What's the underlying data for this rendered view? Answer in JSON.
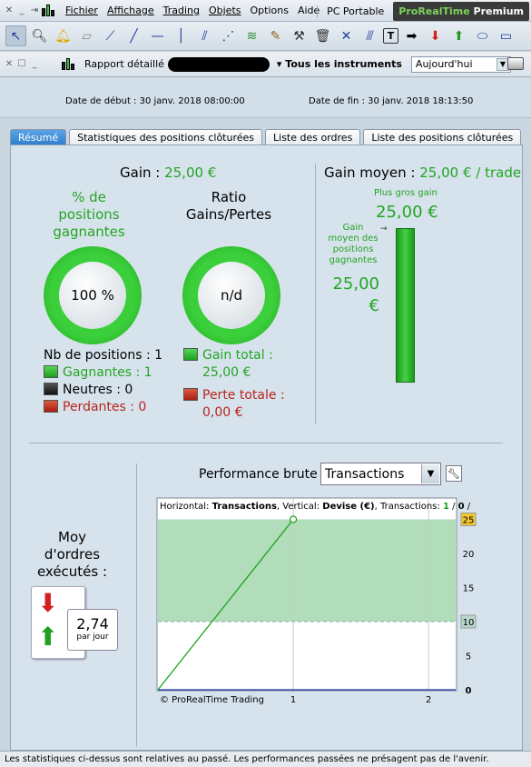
{
  "menu": {
    "items": [
      "Fichier",
      "Affichage",
      "Trading",
      "Objets",
      "Options",
      "Aide"
    ],
    "pc_portable": "PC Portable",
    "brand_green": "ProRealTime",
    "brand_white": "Premium"
  },
  "toolbar": {
    "icons": [
      "cursor-icon",
      "magnifier-icon",
      "bell-icon",
      "ruler-icon",
      "line-icon",
      "segment-icon",
      "horizontal-line-icon",
      "vertical-line-icon",
      "channel-icon",
      "fan-icon",
      "fibonacci-icon",
      "pencil-icon",
      "tools-icon",
      "trash-icon",
      "cross-icon",
      "parallel-icon",
      "text-icon",
      "arrow-right-icon",
      "arrow-down-icon",
      "arrow-up-icon",
      "ellipse-icon",
      "rectangle-icon"
    ]
  },
  "report": {
    "title": "Rapport détaillé",
    "instruments": "Tous les instruments",
    "period": "Aujourd'hui"
  },
  "dates": {
    "start": "Date de début :  30 janv. 2018 08:00:00",
    "end": "Date de fin :  30 janv. 2018 18:13:50"
  },
  "tabs": [
    "Résumé",
    "Statistiques des positions clôturées",
    "Liste des ordres",
    "Liste des positions clôturées"
  ],
  "summary": {
    "gain_label": "Gain : ",
    "gain_value": "25,00 €",
    "pct_title_1": "% de",
    "pct_title_2": "positions",
    "pct_title_3": "gagnantes",
    "pct_value": "100 %",
    "ratio_title_1": "Ratio",
    "ratio_title_2": "Gains/Pertes",
    "ratio_value": "n/d",
    "nb_positions": "Nb de positions : 1",
    "gagnantes": "Gagnantes : 1",
    "neutres": "Neutres : 0",
    "perdantes": "Perdantes : 0",
    "gain_total_1": "Gain total :",
    "gain_total_2": "25,00 €",
    "perte_totale_1": "Perte totale :",
    "perte_totale_2": "0,00 €",
    "gain_moyen_label": "Gain moyen : ",
    "gain_moyen_value": "25,00 € / trade",
    "plus_gros_gain_label": "Plus gros gain",
    "plus_gros_gain_value": "25,00 €",
    "gain_moyen_pos_1": "Gain",
    "gain_moyen_pos_2": "moyen des",
    "gain_moyen_pos_3": "positions",
    "gain_moyen_pos_4": "gagnantes",
    "gain_moyen_pos_value_1": "25,00",
    "gain_moyen_pos_value_2": "€"
  },
  "orders": {
    "title_1": "Moy",
    "title_2": "d'ordres",
    "title_3": "exécutés :",
    "value": "2,74",
    "unit": "par jour"
  },
  "performance": {
    "label": "Performance brute",
    "select": "Transactions",
    "info_h_label": "Horizontal: ",
    "info_h_value": "Transactions",
    "info_v_label": ", Vertical: ",
    "info_v_value": "Devise (€)",
    "info_t_label": ", Transactions: ",
    "info_t_value": "1",
    "info_t_sep": " / ",
    "info_t_total": "0",
    "info_t_end": " /",
    "copyright": "© ProRealTime Trading"
  },
  "chart_data": {
    "type": "line",
    "x": [
      0,
      1
    ],
    "values": [
      0,
      25
    ],
    "xticks": [
      "1",
      "2"
    ],
    "yticks": [
      "5",
      "10",
      "15",
      "20",
      "25"
    ],
    "y_zero_label": "0",
    "xlim": [
      0,
      2.2
    ],
    "ylim": [
      0,
      28
    ],
    "markers": [
      {
        "label": "25",
        "y": 25,
        "color": "#f2c531"
      },
      {
        "label": "10",
        "y": 10,
        "color": "#b8d8cc"
      }
    ],
    "line_color": "#17a317",
    "fill_color": "#a9d9b3"
  },
  "status": "Les statistiques ci-dessus sont relatives au passé. Les performances passées ne présagent pas de l'avenir."
}
